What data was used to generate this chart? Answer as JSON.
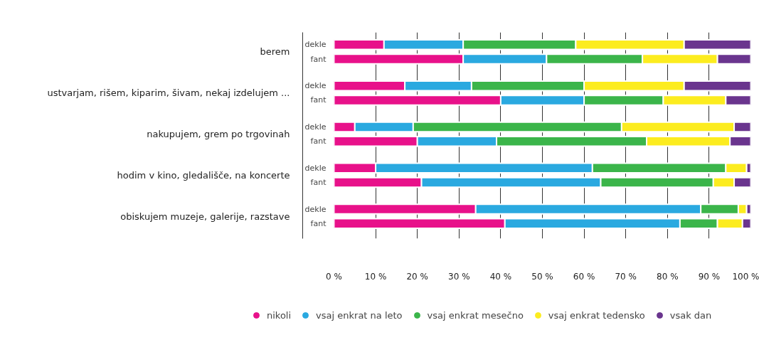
{
  "chart_data": {
    "type": "bar",
    "orientation": "horizontal",
    "stacked": true,
    "categories": [
      "dekle",
      "fant",
      "dekle",
      "fant",
      "dekle",
      "fant",
      "dekle",
      "fant",
      "dekle",
      "fant"
    ],
    "annotations": [
      "berem",
      "ustvarjam, rišem, kiparim, šivam, nekaj izdelujem ...",
      "nakupujem, grem po trgovinah",
      "hodim v kino, gledališče, na koncerte",
      "obiskujem muzeje, galerije, razstave"
    ],
    "series": [
      {
        "name": "nikoli",
        "color": "#e8118a",
        "values": [
          12,
          31,
          17,
          40,
          5,
          20,
          10,
          21,
          34,
          41
        ]
      },
      {
        "name": "vsaj enkrat na leto",
        "color": "#2aa9e0",
        "values": [
          19,
          20,
          16,
          20,
          14,
          19,
          52,
          43,
          54,
          42
        ]
      },
      {
        "name": "vsaj enkrat mesečno",
        "color": "#3bb54a",
        "values": [
          27,
          23,
          27,
          19,
          50,
          36,
          32,
          27,
          9,
          9
        ]
      },
      {
        "name": "vsaj enkrat tedensko",
        "color": "#fcec1f",
        "values": [
          26,
          18,
          24,
          15,
          27,
          20,
          5,
          5,
          2,
          6
        ]
      },
      {
        "name": "vsak dan",
        "color": "#6a358e",
        "values": [
          16,
          8,
          16,
          6,
          4,
          5,
          1,
          4,
          1,
          2
        ]
      }
    ],
    "xlim": [
      0,
      100
    ],
    "xticks": [
      {
        "value": 0,
        "label": "0 %"
      },
      {
        "value": 10,
        "label": "10 %"
      },
      {
        "value": 20,
        "label": "20 %"
      },
      {
        "value": 30,
        "label": "30 %"
      },
      {
        "value": 40,
        "label": "40 %"
      },
      {
        "value": 50,
        "label": "50 %"
      },
      {
        "value": 60,
        "label": "60 %"
      },
      {
        "value": 70,
        "label": "70 %"
      },
      {
        "value": 80,
        "label": "80 %"
      },
      {
        "value": 90,
        "label": "90 %"
      },
      {
        "value": 100,
        "label": "100 %"
      }
    ],
    "grid": "x",
    "legend": "bottom"
  }
}
